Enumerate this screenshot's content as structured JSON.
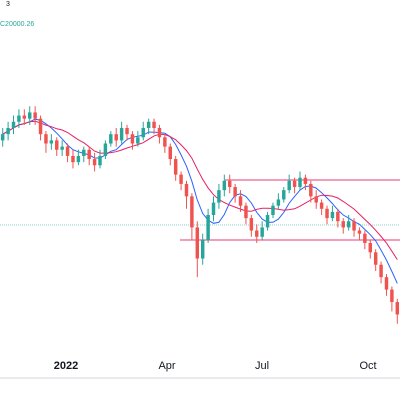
{
  "legend": {
    "indicator": "3",
    "value": "C20000.26"
  },
  "colors": {
    "up": "#26a69a",
    "down": "#ef5350",
    "ma_fast": "#2962ff",
    "ma_slow": "#e91e63",
    "hline": "#f06292",
    "axis": "#d1d4dc",
    "dotted": "#26a69a"
  },
  "chart_data": {
    "type": "candlestick",
    "x_ticks": [
      {
        "label": "2022",
        "bold": true
      },
      {
        "label": "Apr",
        "bold": false
      },
      {
        "label": "Jul",
        "bold": false
      },
      {
        "label": "Oct",
        "bold": false
      }
    ],
    "candles": [
      {
        "o": 58,
        "c": 60,
        "h": 62,
        "l": 56
      },
      {
        "o": 60,
        "c": 62,
        "h": 64,
        "l": 58
      },
      {
        "o": 62,
        "c": 64,
        "h": 66,
        "l": 60
      },
      {
        "o": 64,
        "c": 66,
        "h": 68,
        "l": 62
      },
      {
        "o": 66,
        "c": 65,
        "h": 68,
        "l": 63
      },
      {
        "o": 65,
        "c": 67,
        "h": 69,
        "l": 63
      },
      {
        "o": 67,
        "c": 65,
        "h": 69,
        "l": 63
      },
      {
        "o": 65,
        "c": 60,
        "h": 66,
        "l": 58
      },
      {
        "o": 60,
        "c": 57,
        "h": 61,
        "l": 54
      },
      {
        "o": 57,
        "c": 58,
        "h": 60,
        "l": 55
      },
      {
        "o": 58,
        "c": 55,
        "h": 59,
        "l": 53
      },
      {
        "o": 55,
        "c": 56,
        "h": 58,
        "l": 53
      },
      {
        "o": 56,
        "c": 53,
        "h": 57,
        "l": 51
      },
      {
        "o": 53,
        "c": 51,
        "h": 55,
        "l": 49
      },
      {
        "o": 51,
        "c": 53,
        "h": 55,
        "l": 50
      },
      {
        "o": 53,
        "c": 55,
        "h": 56,
        "l": 51
      },
      {
        "o": 55,
        "c": 52,
        "h": 56,
        "l": 50
      },
      {
        "o": 52,
        "c": 50,
        "h": 54,
        "l": 48
      },
      {
        "o": 50,
        "c": 53,
        "h": 55,
        "l": 49
      },
      {
        "o": 53,
        "c": 57,
        "h": 58,
        "l": 52
      },
      {
        "o": 57,
        "c": 60,
        "h": 61,
        "l": 56
      },
      {
        "o": 60,
        "c": 58,
        "h": 62,
        "l": 56
      },
      {
        "o": 58,
        "c": 62,
        "h": 64,
        "l": 57
      },
      {
        "o": 62,
        "c": 60,
        "h": 63,
        "l": 58
      },
      {
        "o": 60,
        "c": 57,
        "h": 61,
        "l": 55
      },
      {
        "o": 57,
        "c": 59,
        "h": 61,
        "l": 56
      },
      {
        "o": 59,
        "c": 62,
        "h": 64,
        "l": 58
      },
      {
        "o": 62,
        "c": 64,
        "h": 65,
        "l": 60
      },
      {
        "o": 64,
        "c": 62,
        "h": 65,
        "l": 60
      },
      {
        "o": 62,
        "c": 59,
        "h": 63,
        "l": 57
      },
      {
        "o": 59,
        "c": 56,
        "h": 60,
        "l": 54
      },
      {
        "o": 56,
        "c": 52,
        "h": 57,
        "l": 50
      },
      {
        "o": 52,
        "c": 47,
        "h": 53,
        "l": 45
      },
      {
        "o": 47,
        "c": 44,
        "h": 48,
        "l": 42
      },
      {
        "o": 44,
        "c": 40,
        "h": 45,
        "l": 36
      },
      {
        "o": 40,
        "c": 30,
        "h": 41,
        "l": 26
      },
      {
        "o": 30,
        "c": 20,
        "h": 32,
        "l": 14
      },
      {
        "o": 20,
        "c": 26,
        "h": 28,
        "l": 18
      },
      {
        "o": 26,
        "c": 34,
        "h": 36,
        "l": 25
      },
      {
        "o": 34,
        "c": 38,
        "h": 40,
        "l": 32
      },
      {
        "o": 38,
        "c": 42,
        "h": 44,
        "l": 36
      },
      {
        "o": 42,
        "c": 45,
        "h": 47,
        "l": 40
      },
      {
        "o": 45,
        "c": 43,
        "h": 47,
        "l": 41
      },
      {
        "o": 43,
        "c": 40,
        "h": 44,
        "l": 38
      },
      {
        "o": 40,
        "c": 37,
        "h": 42,
        "l": 35
      },
      {
        "o": 37,
        "c": 33,
        "h": 38,
        "l": 31
      },
      {
        "o": 33,
        "c": 29,
        "h": 34,
        "l": 27
      },
      {
        "o": 29,
        "c": 27,
        "h": 31,
        "l": 25
      },
      {
        "o": 27,
        "c": 30,
        "h": 32,
        "l": 26
      },
      {
        "o": 30,
        "c": 34,
        "h": 35,
        "l": 29
      },
      {
        "o": 34,
        "c": 37,
        "h": 38,
        "l": 33
      },
      {
        "o": 37,
        "c": 39,
        "h": 41,
        "l": 36
      },
      {
        "o": 39,
        "c": 42,
        "h": 43,
        "l": 38
      },
      {
        "o": 42,
        "c": 45,
        "h": 47,
        "l": 41
      },
      {
        "o": 45,
        "c": 43,
        "h": 46,
        "l": 41
      },
      {
        "o": 43,
        "c": 46,
        "h": 48,
        "l": 42
      },
      {
        "o": 46,
        "c": 44,
        "h": 47,
        "l": 42
      },
      {
        "o": 44,
        "c": 40,
        "h": 45,
        "l": 38
      },
      {
        "o": 40,
        "c": 38,
        "h": 42,
        "l": 36
      },
      {
        "o": 38,
        "c": 36,
        "h": 39,
        "l": 34
      },
      {
        "o": 36,
        "c": 33,
        "h": 37,
        "l": 31
      },
      {
        "o": 33,
        "c": 35,
        "h": 37,
        "l": 32
      },
      {
        "o": 35,
        "c": 32,
        "h": 36,
        "l": 30
      },
      {
        "o": 32,
        "c": 30,
        "h": 33,
        "l": 28
      },
      {
        "o": 30,
        "c": 32,
        "h": 34,
        "l": 29
      },
      {
        "o": 32,
        "c": 29,
        "h": 33,
        "l": 27
      },
      {
        "o": 29,
        "c": 28,
        "h": 30,
        "l": 26
      },
      {
        "o": 28,
        "c": 25,
        "h": 29,
        "l": 23
      },
      {
        "o": 25,
        "c": 22,
        "h": 26,
        "l": 20
      },
      {
        "o": 22,
        "c": 18,
        "h": 23,
        "l": 16
      },
      {
        "o": 18,
        "c": 14,
        "h": 19,
        "l": 12
      },
      {
        "o": 14,
        "c": 10,
        "h": 15,
        "l": 8
      },
      {
        "o": 10,
        "c": 6,
        "h": 11,
        "l": 3
      },
      {
        "o": 6,
        "c": 2,
        "h": 7,
        "l": -1
      }
    ]
  }
}
